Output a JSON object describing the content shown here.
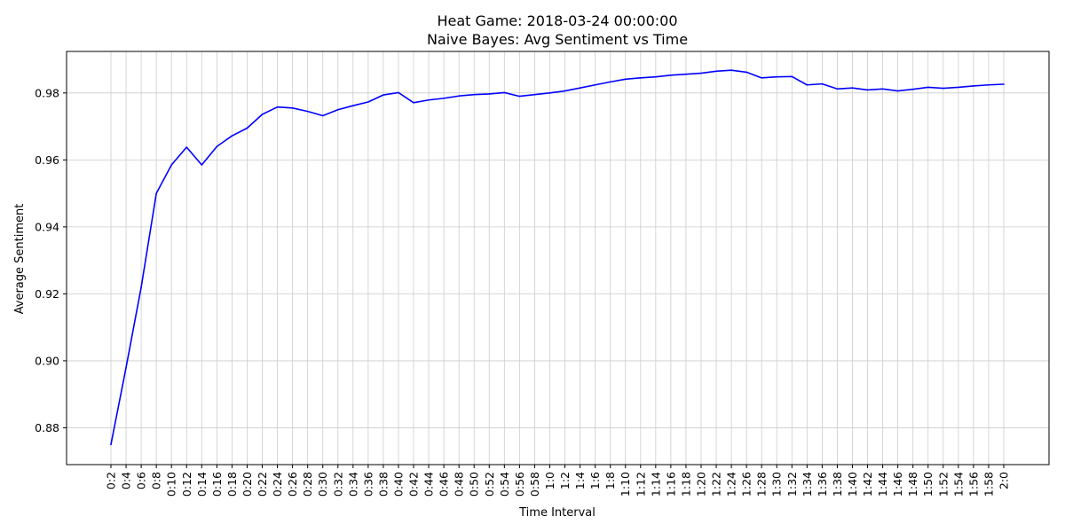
{
  "chart_data": {
    "type": "line",
    "title": "Heat Game: 2018-03-24 00:00:00",
    "subtitle": "Naive Bayes: Avg Sentiment vs Time",
    "xlabel": "Time Interval",
    "ylabel": "Average Sentiment",
    "grid": true,
    "legend": "none",
    "line_color": "#0000ff",
    "ylim": [
      0.869,
      0.9924
    ],
    "yticks": [
      0.88,
      0.9,
      0.92,
      0.94,
      0.96,
      0.98
    ],
    "ytick_labels": [
      "0.88",
      "0.90",
      "0.92",
      "0.94",
      "0.96",
      "0.98"
    ],
    "categories": [
      "0:2",
      "0:4",
      "0:6",
      "0:8",
      "0:10",
      "0:12",
      "0:14",
      "0:16",
      "0:18",
      "0:20",
      "0:22",
      "0:24",
      "0:26",
      "0:28",
      "0:30",
      "0:32",
      "0:34",
      "0:36",
      "0:38",
      "0:40",
      "0:42",
      "0:44",
      "0:46",
      "0:48",
      "0:50",
      "0:52",
      "0:54",
      "0:56",
      "0:58",
      "1:0",
      "1:2",
      "1:4",
      "1:6",
      "1:8",
      "1:10",
      "1:12",
      "1:14",
      "1:16",
      "1:18",
      "1:20",
      "1:22",
      "1:24",
      "1:26",
      "1:28",
      "1:30",
      "1:32",
      "1:34",
      "1:36",
      "1:38",
      "1:40",
      "1:42",
      "1:44",
      "1:46",
      "1:48",
      "1:50",
      "1:52",
      "1:54",
      "1:56",
      "1:58",
      "2:0"
    ],
    "values": [
      0.875,
      0.898,
      0.922,
      0.95,
      0.9585,
      0.9638,
      0.9585,
      0.964,
      0.9672,
      0.9695,
      0.9736,
      0.9758,
      0.9755,
      0.9745,
      0.9732,
      0.975,
      0.9762,
      0.9773,
      0.9794,
      0.9801,
      0.9771,
      0.9779,
      0.9784,
      0.9791,
      0.9795,
      0.9797,
      0.9801,
      0.979,
      0.9795,
      0.98,
      0.9806,
      0.9815,
      0.9824,
      0.9833,
      0.9841,
      0.9845,
      0.9848,
      0.9853,
      0.9856,
      0.9859,
      0.9865,
      0.9868,
      0.9862,
      0.9845,
      0.9848,
      0.9849,
      0.9824,
      0.9827,
      0.9812,
      0.9815,
      0.9809,
      0.9812,
      0.9806,
      0.9811,
      0.9817,
      0.9814,
      0.9817,
      0.9821,
      0.9824,
      0.9826
    ]
  }
}
